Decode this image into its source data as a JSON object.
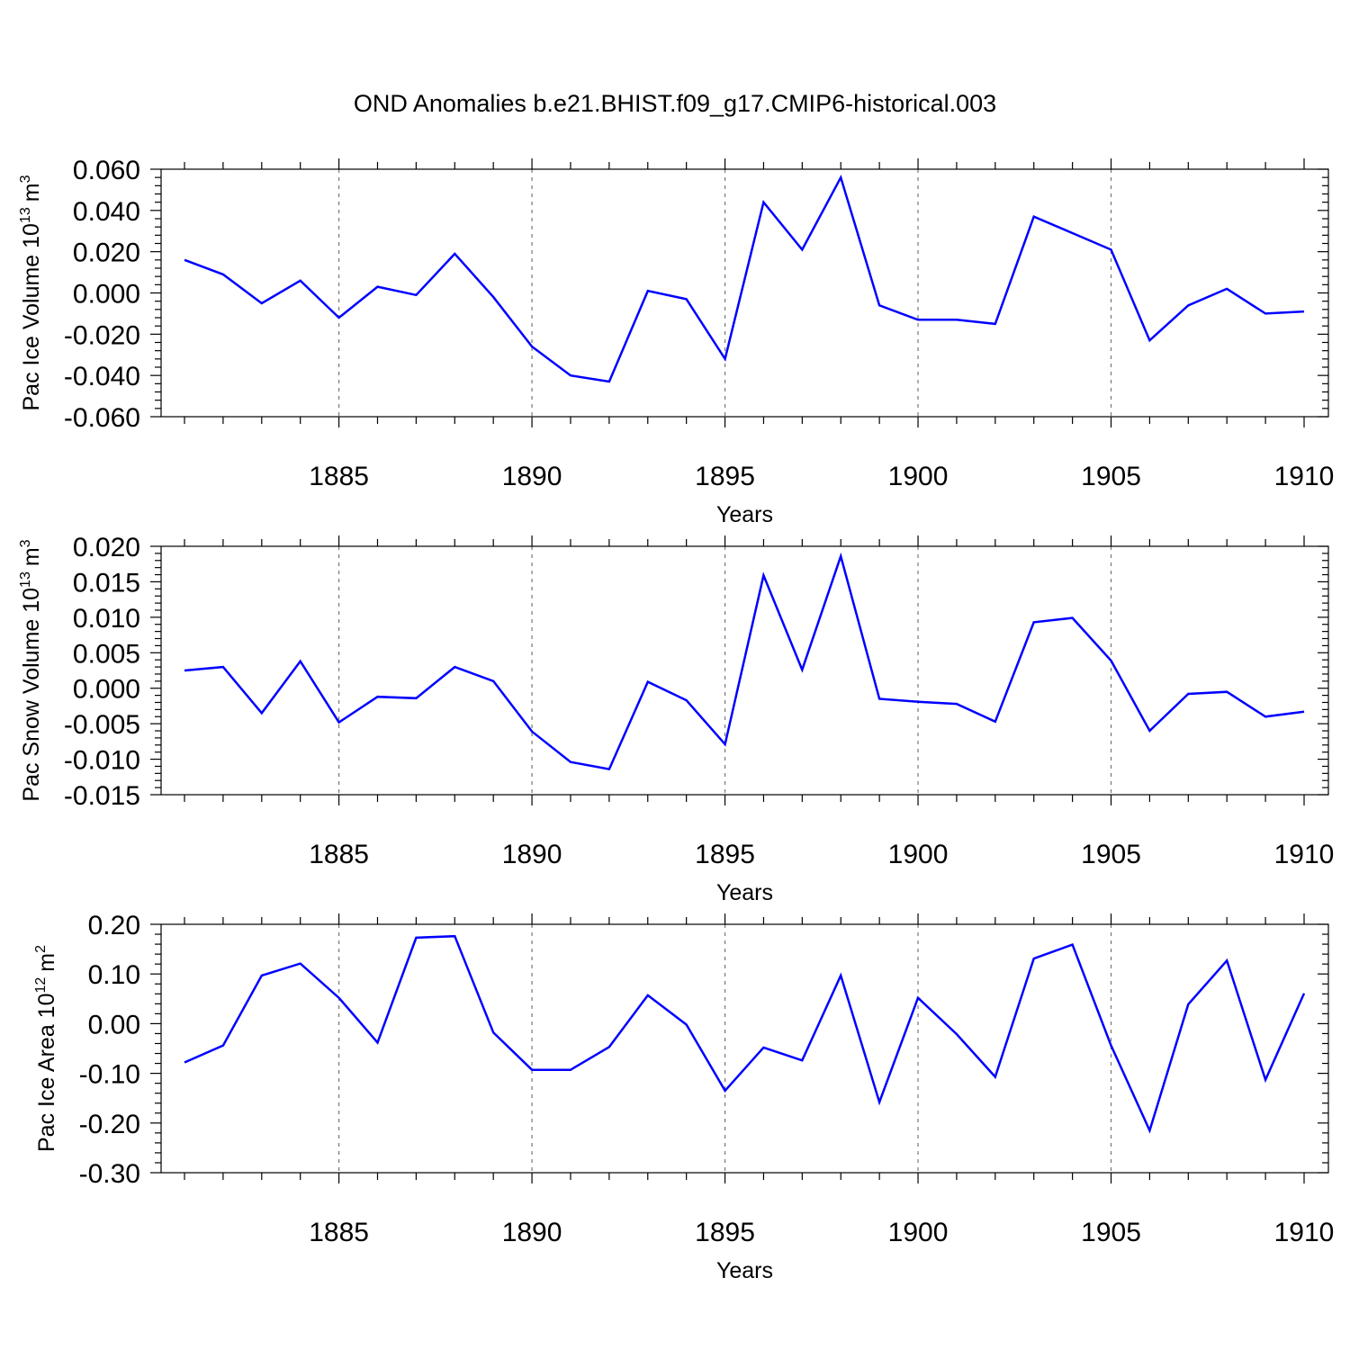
{
  "title": "OND Anomalies b.e21.BHIST.f09_g17.CMIP6-historical.003",
  "line_color": "#0000ff",
  "chart_data": [
    {
      "type": "line",
      "xlabel": "Years",
      "ylabel_text": "Pac Ice Volume 10",
      "ylabel_exp": "13",
      "ylabel_unit": "m",
      "ylabel_unit_exp": "3",
      "xlim": [
        1881,
        1910
      ],
      "ylim": [
        -0.06,
        0.06
      ],
      "xticks": [
        1885,
        1890,
        1895,
        1900,
        1905,
        1910
      ],
      "xtick_labels": [
        "1885",
        "1890",
        "1895",
        "1900",
        "1905",
        "1910"
      ],
      "yticks": [
        -0.06,
        -0.04,
        -0.02,
        0.0,
        0.02,
        0.04,
        0.06
      ],
      "ytick_labels": [
        "-0.060",
        "-0.040",
        "-0.020",
        "0.000",
        "0.020",
        "0.040",
        "0.060"
      ],
      "x": [
        1881,
        1882,
        1883,
        1884,
        1885,
        1886,
        1887,
        1888,
        1889,
        1890,
        1891,
        1892,
        1893,
        1894,
        1895,
        1896,
        1897,
        1898,
        1899,
        1900,
        1901,
        1902,
        1903,
        1904,
        1905,
        1906,
        1907,
        1908,
        1909,
        1910
      ],
      "values": [
        0.016,
        0.009,
        -0.005,
        0.006,
        -0.012,
        0.003,
        -0.001,
        0.019,
        -0.002,
        -0.026,
        -0.04,
        -0.043,
        0.001,
        -0.003,
        -0.032,
        0.044,
        0.021,
        0.056,
        -0.006,
        -0.013,
        -0.013,
        -0.015,
        0.037,
        0.029,
        0.021,
        -0.023,
        -0.006,
        0.002,
        -0.01,
        -0.009
      ]
    },
    {
      "type": "line",
      "xlabel": "Years",
      "ylabel_text": "Pac Snow Volume 10",
      "ylabel_exp": "13",
      "ylabel_unit": "m",
      "ylabel_unit_exp": "3",
      "xlim": [
        1881,
        1910
      ],
      "ylim": [
        -0.015,
        0.02
      ],
      "xticks": [
        1885,
        1890,
        1895,
        1900,
        1905,
        1910
      ],
      "xtick_labels": [
        "1885",
        "1890",
        "1895",
        "1900",
        "1905",
        "1910"
      ],
      "yticks": [
        -0.015,
        -0.01,
        -0.005,
        0.0,
        0.005,
        0.01,
        0.015,
        0.02
      ],
      "ytick_labels": [
        "-0.015",
        "-0.010",
        "-0.005",
        "0.000",
        "0.005",
        "0.010",
        "0.015",
        "0.020"
      ],
      "x": [
        1881,
        1882,
        1883,
        1884,
        1885,
        1886,
        1887,
        1888,
        1889,
        1890,
        1891,
        1892,
        1893,
        1894,
        1895,
        1896,
        1897,
        1898,
        1899,
        1900,
        1901,
        1902,
        1903,
        1904,
        1905,
        1906,
        1907,
        1908,
        1909,
        1910
      ],
      "values": [
        0.0025,
        0.003,
        -0.0035,
        0.0038,
        -0.0048,
        -0.0012,
        -0.0014,
        0.003,
        0.001,
        -0.0061,
        -0.0104,
        -0.0114,
        0.0009,
        -0.0017,
        -0.0079,
        0.0159,
        0.0026,
        0.0186,
        -0.0015,
        -0.0019,
        -0.0022,
        -0.0047,
        0.0093,
        0.0099,
        0.0039,
        -0.006,
        -0.0008,
        -0.0005,
        -0.004,
        -0.0033
      ]
    },
    {
      "type": "line",
      "xlabel": "Years",
      "ylabel_text": "Pac Ice Area 10",
      "ylabel_exp": "12",
      "ylabel_unit": "m",
      "ylabel_unit_exp": "2",
      "xlim": [
        1881,
        1910
      ],
      "ylim": [
        -0.3,
        0.2
      ],
      "xticks": [
        1885,
        1890,
        1895,
        1900,
        1905,
        1910
      ],
      "xtick_labels": [
        "1885",
        "1890",
        "1895",
        "1900",
        "1905",
        "1910"
      ],
      "yticks": [
        -0.3,
        -0.2,
        -0.1,
        0.0,
        0.1,
        0.2
      ],
      "ytick_labels": [
        "-0.30",
        "-0.20",
        "-0.10",
        "0.00",
        "0.10",
        "0.20"
      ],
      "x": [
        1881,
        1882,
        1883,
        1884,
        1885,
        1886,
        1887,
        1888,
        1889,
        1890,
        1891,
        1892,
        1893,
        1894,
        1895,
        1896,
        1897,
        1898,
        1899,
        1900,
        1901,
        1902,
        1903,
        1904,
        1905,
        1906,
        1907,
        1908,
        1909,
        1910
      ],
      "values": [
        -0.078,
        -0.044,
        0.097,
        0.121,
        0.052,
        -0.038,
        0.173,
        0.176,
        -0.018,
        -0.093,
        -0.093,
        -0.047,
        0.057,
        -0.002,
        -0.135,
        -0.048,
        -0.074,
        0.097,
        -0.158,
        0.052,
        -0.021,
        -0.107,
        0.131,
        0.159,
        -0.044,
        -0.215,
        0.039,
        0.127,
        -0.113,
        0.061
      ]
    }
  ]
}
